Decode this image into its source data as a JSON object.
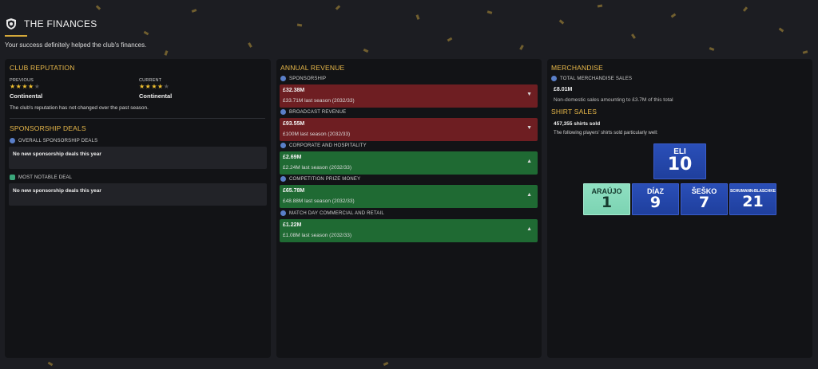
{
  "header": {
    "title": "THE FINANCES",
    "subtitle": "Your success definitely helped the club's finances."
  },
  "reputation": {
    "section_title": "CLUB REPUTATION",
    "previous_label": "PREVIOUS",
    "previous_stars": 4,
    "previous_value": "Continental",
    "current_label": "CURRENT",
    "current_stars": 4,
    "current_value": "Continental",
    "note": "The club's reputation has not changed over the past season."
  },
  "sponsorship": {
    "section_title": "SPONSORSHIP DEALS",
    "overall_label": "OVERALL SPONSORSHIP DEALS",
    "overall_value": "No new sponsorship deals this year",
    "notable_label": "MOST NOTABLE DEAL",
    "notable_value": "No new sponsorship deals this year"
  },
  "revenue": {
    "section_title": "ANNUAL REVENUE",
    "items": [
      {
        "label": "SPONSORSHIP",
        "amount": "£32.38M",
        "last": "£33.71M last season (2032/33)",
        "trend": "down",
        "arrow": "▼"
      },
      {
        "label": "BROADCAST REVENUE",
        "amount": "£93.55M",
        "last": "£100M last season (2032/33)",
        "trend": "down",
        "arrow": "▼"
      },
      {
        "label": "CORPORATE AND HOSPITALITY",
        "amount": "£2.69M",
        "last": "£2.24M last season (2032/33)",
        "trend": "up",
        "arrow": "▲"
      },
      {
        "label": "COMPETITION PRIZE MONEY",
        "amount": "£65.78M",
        "last": "£48.88M last season (2032/33)",
        "trend": "up",
        "arrow": "▲"
      },
      {
        "label": "MATCH DAY COMMERCIAL AND RETAIL",
        "amount": "£1.22M",
        "last": "£1.08M last season (2032/33)",
        "trend": "up",
        "arrow": "▲"
      }
    ]
  },
  "merchandise": {
    "section_title": "MERCHANDISE",
    "total_label": "TOTAL MERCHANDISE SALES",
    "total_value": "£8.01M",
    "total_note": "Non-domestic sales amounting to £3.7M of this total",
    "shirts_title": "SHIRT SALES",
    "shirts_sold": "457,355 shirts sold",
    "shirts_note": "The following players' shirts sold particularly well:",
    "shirts": [
      {
        "name": "ELI",
        "number": "10",
        "kit": "outfield"
      },
      {
        "name": "ARAÚJO",
        "number": "1",
        "kit": "goalkeeper"
      },
      {
        "name": "DÍAZ",
        "number": "9",
        "kit": "outfield"
      },
      {
        "name": "ŠEŠKO",
        "number": "7",
        "kit": "outfield"
      },
      {
        "name": "SCHUMANN-BLASCHKE",
        "number": "21",
        "kit": "outfield"
      }
    ]
  },
  "colors": {
    "accent": "#e9b94a",
    "panel": "#121316",
    "revenue_down": "#6e1e22",
    "revenue_up": "#1f6a33",
    "shirt_outfield": "#1f3f9d",
    "shirt_goalkeeper": "#7cd3b2"
  }
}
